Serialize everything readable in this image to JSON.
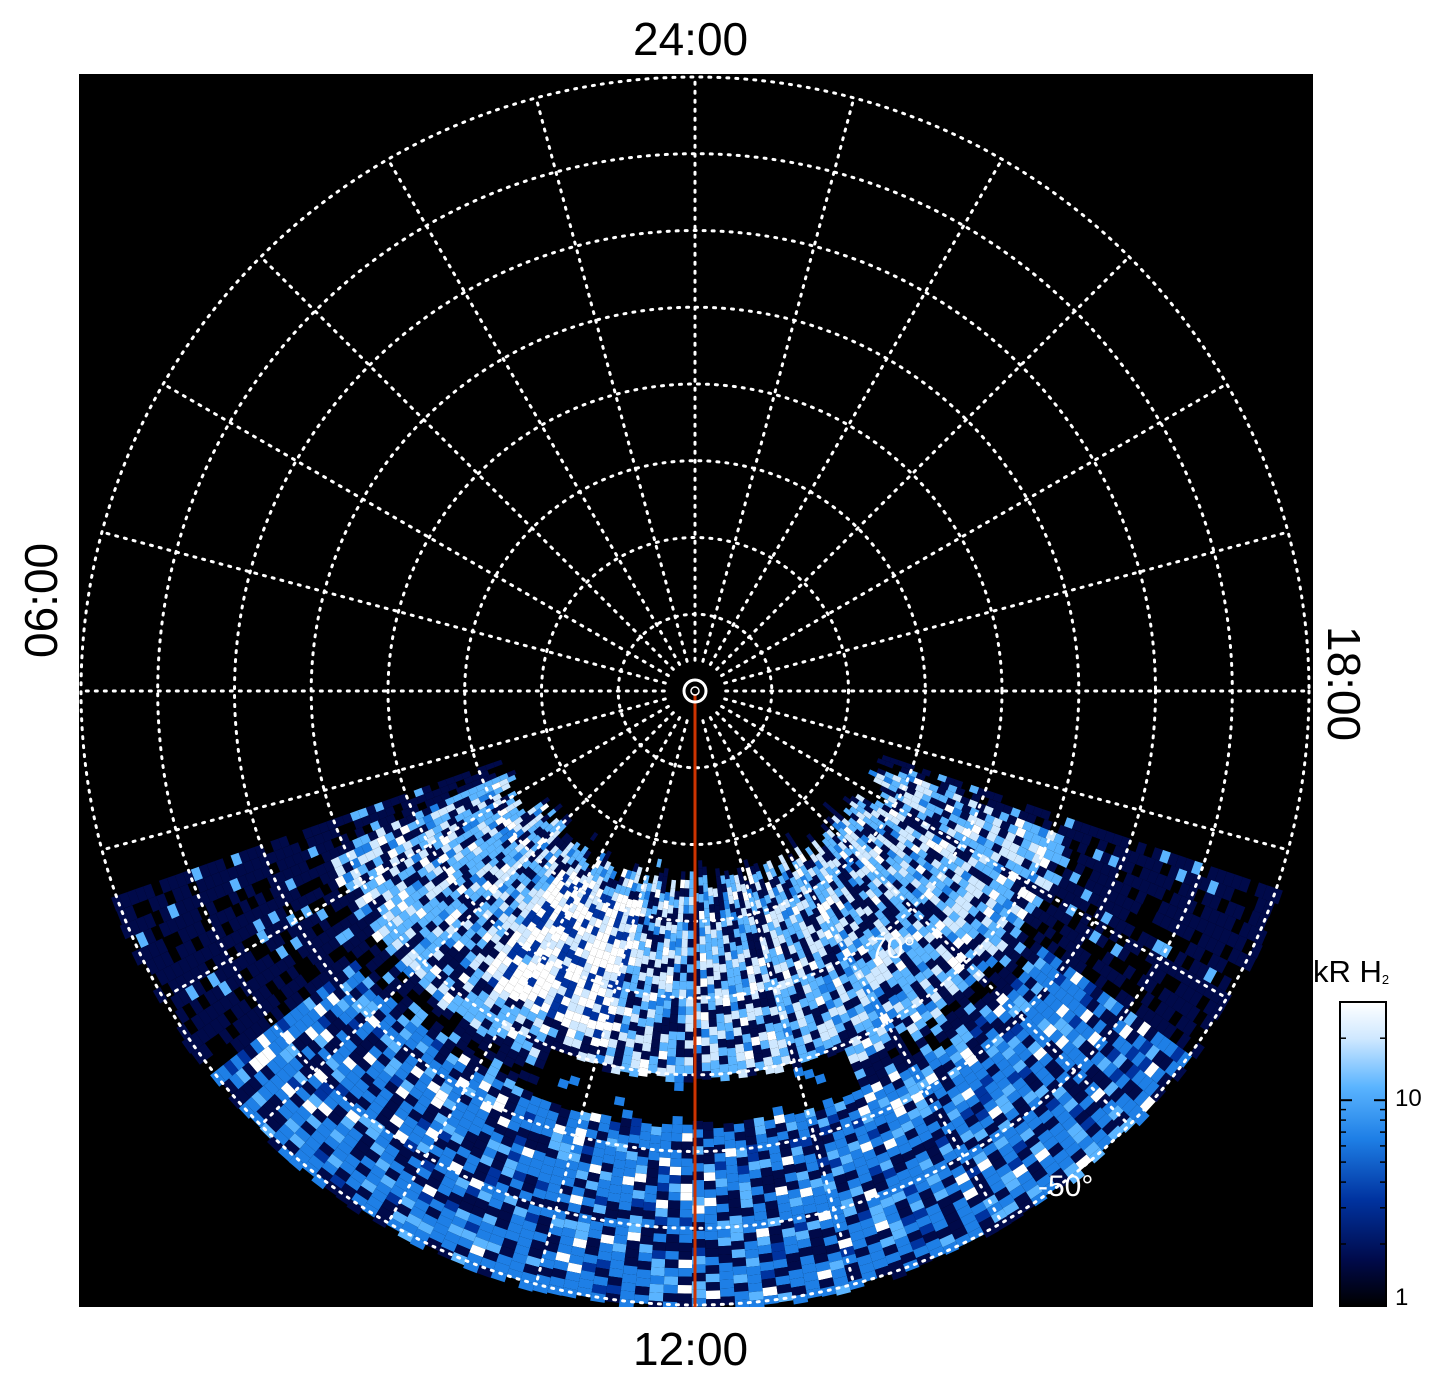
{
  "labels": {
    "mlt_top": "24:00",
    "mlt_bottom": "12:00",
    "mlt_left": "06:00",
    "mlt_right": "18:00",
    "lat_inner": "-70°",
    "lat_outer": "-50°"
  },
  "colorbar": {
    "title": "kR H",
    "title_sub": "2",
    "tick_labels": [
      "10",
      "1"
    ],
    "scale": "log",
    "range": [
      1,
      30
    ],
    "colors": [
      "#000000",
      "#000a4a",
      "#0033a0",
      "#1e7fe6",
      "#5ab4ff",
      "#cfe8ff",
      "#ffffff"
    ]
  },
  "chart_data": {
    "type": "heatmap",
    "projection": "polar (south pole view)",
    "hemisphere": "southern",
    "colatitude_range_deg": [
      0,
      40
    ],
    "grid": true,
    "grid_latitudes_deg": [
      -85,
      -80,
      -75,
      -70,
      -65,
      -60,
      -55,
      -50
    ],
    "grid_meridians_mlt_hours": [
      0,
      1,
      2,
      3,
      4,
      5,
      6,
      7,
      8,
      9,
      10,
      11,
      12,
      13,
      14,
      15,
      16,
      17,
      18,
      19,
      20,
      21,
      22,
      23
    ],
    "data_coverage_mlt_hours": [
      7.3,
      16.7
    ],
    "marked_meridian_mlt": "12:00",
    "marker_color": "#cc3300",
    "background_color": "#000000",
    "colorbar_unit": "kR H2",
    "brightness_range_kR": [
      1,
      30
    ],
    "features": [
      {
        "description": "brightest auroral region",
        "mlt_hours": [
          9.5,
          11.0
        ],
        "latitude_deg": [
          -76,
          -67
        ],
        "intensity_kR": 30
      },
      {
        "description": "main auroral oval band",
        "mlt_hours": [
          7.5,
          16.5
        ],
        "latitude_deg": [
          -78,
          -64
        ],
        "intensity_kR": 12
      },
      {
        "description": "dark gap",
        "mlt_hours": [
          10.5,
          13.5
        ],
        "latitude_deg": [
          -65,
          -62
        ],
        "intensity_kR": 1
      },
      {
        "description": "noisy low-latitude region",
        "mlt_hours": [
          8.5,
          15.5
        ],
        "latitude_deg": [
          -62,
          -50
        ],
        "intensity_kR": 6
      }
    ]
  }
}
